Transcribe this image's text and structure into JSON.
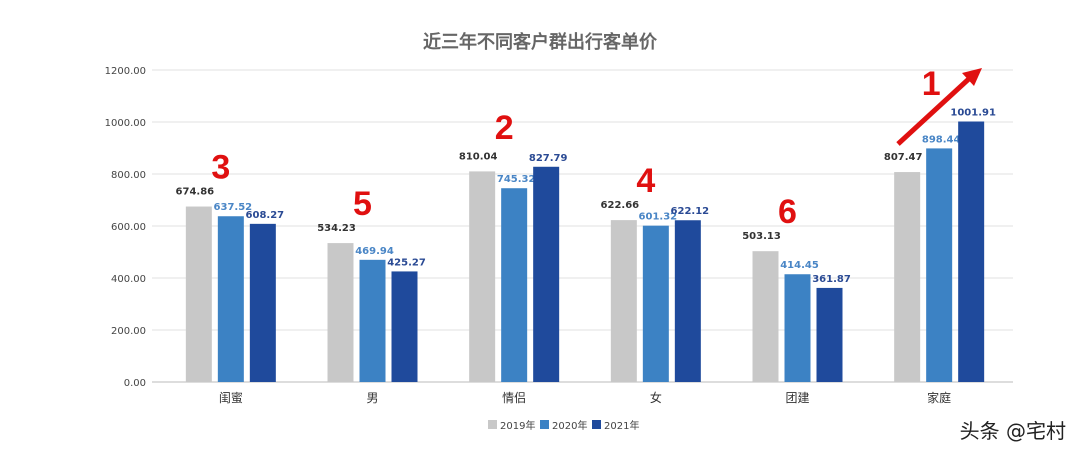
{
  "chart_data": {
    "type": "bar",
    "title": "近三年不同客户群出行客单价",
    "categories": [
      "闺蜜",
      "男",
      "情侣",
      "女",
      "团建",
      "家庭"
    ],
    "series": [
      {
        "name": "2019年",
        "color": "#c8c8c8",
        "label_color": "#333333",
        "values": [
          674.86,
          534.23,
          810.04,
          622.66,
          503.13,
          807.47
        ]
      },
      {
        "name": "2020年",
        "color": "#3c82c4",
        "label_color": "#4a86c6",
        "values": [
          637.52,
          469.94,
          745.32,
          601.32,
          414.45,
          898.44
        ]
      },
      {
        "name": "2021年",
        "color": "#1f4a9c",
        "label_color": "#2a4a94",
        "values": [
          608.27,
          425.27,
          827.79,
          622.12,
          361.87,
          1001.91
        ]
      }
    ],
    "ylim": [
      0,
      1200
    ],
    "yticks": [
      "0.00",
      "200.00",
      "400.00",
      "600.00",
      "800.00",
      "1000.00",
      "1200.00"
    ],
    "grid": true,
    "legend": "bottom",
    "annotations": {
      "rank_labels": [
        "3",
        "5",
        "2",
        "4",
        "6",
        "1"
      ],
      "color": "#e01010",
      "arrow": "red upward arrow over 家庭"
    }
  },
  "credit": "头条 @宅村"
}
